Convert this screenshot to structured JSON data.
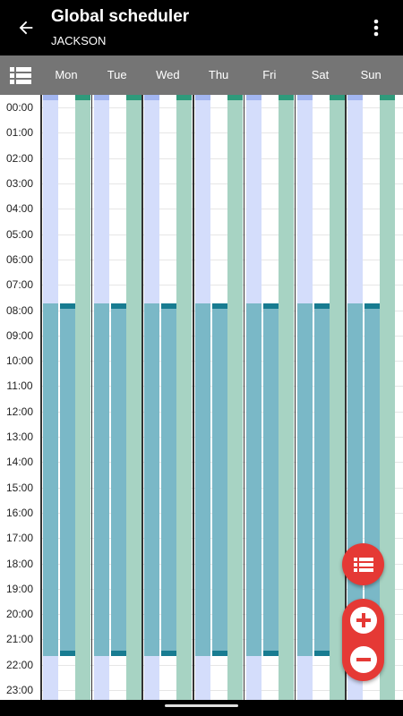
{
  "appbar": {
    "title": "Global scheduler",
    "subtitle": "JACKSON",
    "back_icon": "arrow-back-icon",
    "more_icon": "more-vert-icon"
  },
  "days": [
    "Mon",
    "Tue",
    "Wed",
    "Thu",
    "Fri",
    "Sat",
    "Sun"
  ],
  "hours": [
    "00:00",
    "01:00",
    "02:00",
    "03:00",
    "04:00",
    "05:00",
    "06:00",
    "07:00",
    "08:00",
    "09:00",
    "10:00",
    "11:00",
    "12:00",
    "13:00",
    "14:00",
    "15:00",
    "16:00",
    "17:00",
    "18:00",
    "19:00",
    "20:00",
    "21:00",
    "22:00",
    "23:00"
  ],
  "colors": {
    "header_bg": "#757575",
    "blue_lane": "#d4ddfb",
    "green_lane": "#a7d3c3",
    "green_cap": "#2f9a7b",
    "blue_cap": "#a3b6f1",
    "active_block": "#7ab8c7",
    "active_cap": "#187c91",
    "fab": "#e53935"
  },
  "schedule": {
    "blue_lane_hours": [
      0,
      24
    ],
    "green_lane_hours": [
      0,
      24
    ],
    "active_block_hours": [
      7.75,
      21.65
    ]
  },
  "fabs": {
    "list_icon": "list-icon",
    "zoom_in_icon": "zoom-in-icon",
    "zoom_out_icon": "zoom-out-icon"
  }
}
